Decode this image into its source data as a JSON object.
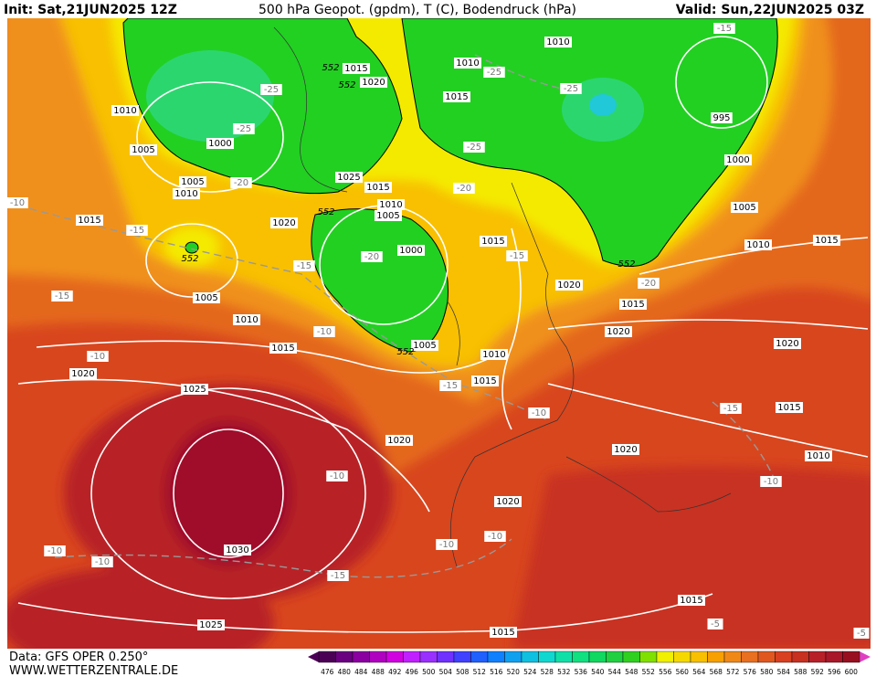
{
  "header": {
    "init": "Init: Sat,21JUN2025 12Z",
    "title": "500 hPa Geopot. (gpdm), T (C), Bodendruck (hPa)",
    "valid": "Valid: Sun,22JUN2025 03Z"
  },
  "footer": {
    "data": "Data: GFS OPER 0.250°",
    "site": "WWW.WETTERZENTRALE.DE"
  },
  "colorbar": {
    "levels": [
      476,
      480,
      484,
      488,
      492,
      496,
      500,
      504,
      508,
      512,
      516,
      520,
      524,
      528,
      532,
      536,
      540,
      544,
      548,
      552,
      556,
      560,
      564,
      568,
      572,
      576,
      580,
      584,
      588,
      592,
      596,
      600
    ],
    "colors": [
      "#4b0055",
      "#6a0080",
      "#8a00a0",
      "#b000c0",
      "#d000e0",
      "#c020ff",
      "#9a30ff",
      "#7030ff",
      "#4040ff",
      "#2060ff",
      "#1080ff",
      "#10a0f0",
      "#10c0e0",
      "#10d8d0",
      "#10e0a8",
      "#10e080",
      "#10d860",
      "#20d040",
      "#30d020",
      "#80e000",
      "#f0f000",
      "#f5d800",
      "#f8c000",
      "#f8a000",
      "#f08818",
      "#e87020",
      "#e05820",
      "#d84020",
      "#c83020",
      "#b82028",
      "#a81828",
      "#981020"
    ]
  },
  "isobar_labels": [
    1010,
    1015,
    1020,
    1010,
    1015,
    995,
    1010,
    1000,
    1005,
    1005,
    1010,
    1025,
    1015,
    1010,
    1005,
    1020,
    1000,
    1015,
    1015,
    1000,
    1005,
    1010,
    1015,
    1005,
    1020,
    1015,
    1010,
    1020,
    1020,
    1015,
    1005,
    1010,
    1015,
    1020,
    1025,
    1015,
    1020,
    1020,
    1010,
    1020,
    1030,
    1015,
    1025,
    1015
  ],
  "temperature_labels": [
    -15,
    -25,
    -25,
    -25,
    -25,
    -25,
    -20,
    -20,
    -10,
    -15,
    -20,
    -15,
    -15,
    -20,
    -15,
    -10,
    -10,
    -15,
    -10,
    -15,
    -10,
    -10,
    -10,
    -10,
    -10,
    -10,
    -15,
    -5,
    -5
  ],
  "geopotential_labels": [
    552,
    552,
    552,
    552,
    552,
    552
  ]
}
